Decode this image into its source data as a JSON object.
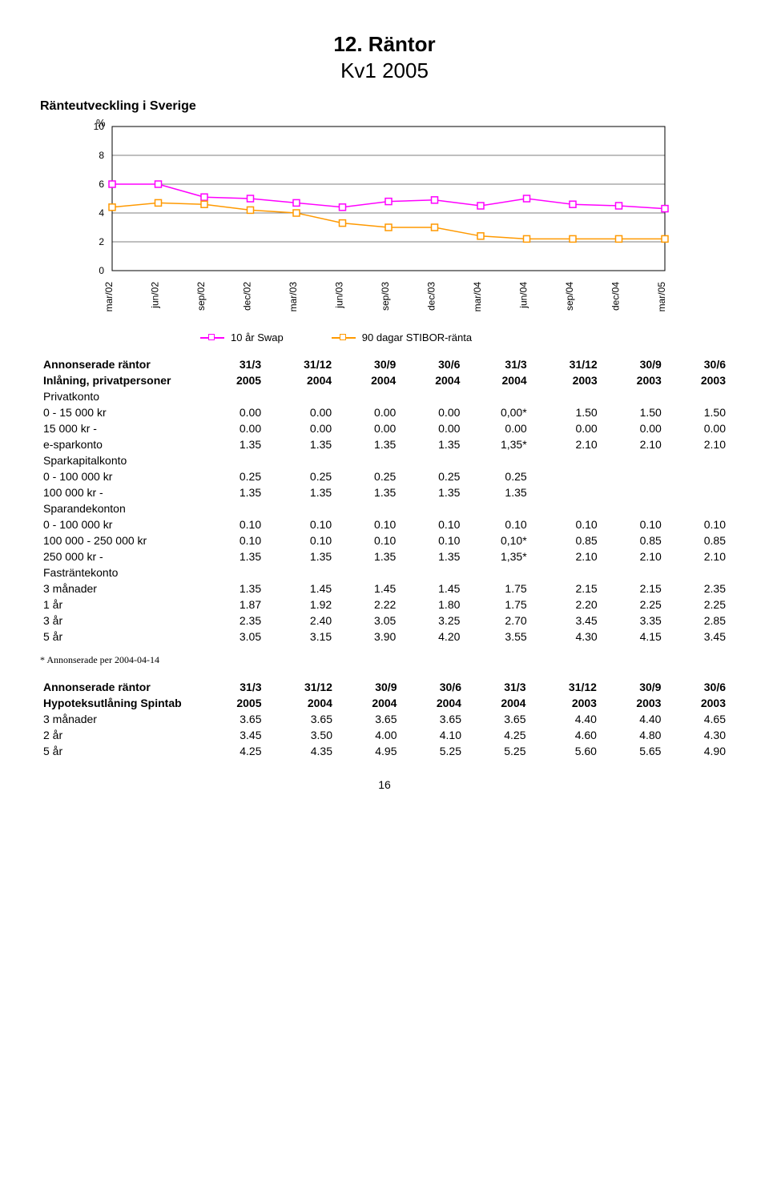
{
  "title": "12. Räntor",
  "subtitle": "Kv1 2005",
  "section_label": "Ränteutveckling i Sverige",
  "chart": {
    "type": "line",
    "y_label": "%",
    "ylim": [
      0,
      10
    ],
    "ytick_step": 2,
    "background_color": "#ffffff",
    "grid_color": "#000000",
    "border_color": "#000000",
    "axis_label_color": "#000000",
    "axis_label_fontsize": 12,
    "x_labels": [
      "mar/02",
      "jun/02",
      "sep/02",
      "dec/02",
      "mar/03",
      "jun/03",
      "sep/03",
      "dec/03",
      "mar/04",
      "jun/04",
      "sep/04",
      "dec/04",
      "mar/05"
    ],
    "series": [
      {
        "name": "10 år Swap",
        "color": "#ff00ff",
        "marker": "square",
        "values": [
          6.0,
          6.0,
          5.1,
          5.0,
          4.7,
          4.4,
          4.8,
          4.9,
          4.5,
          5.0,
          4.6,
          4.5,
          4.3
        ]
      },
      {
        "name": "90 dagar STIBOR-ränta",
        "color": "#ff9900",
        "marker": "square",
        "values": [
          4.4,
          4.7,
          4.6,
          4.2,
          4.0,
          3.3,
          3.0,
          3.0,
          2.4,
          2.2,
          2.2,
          2.2,
          2.2
        ]
      }
    ],
    "legend_position": "bottom"
  },
  "table1": {
    "header1": [
      "Annonserade räntor",
      "31/3",
      "31/12",
      "30/9",
      "30/6",
      "31/3",
      "31/12",
      "30/9",
      "30/6"
    ],
    "header2": [
      "Inlåning, privatpersoner",
      "2005",
      "2004",
      "2004",
      "2004",
      "2004",
      "2003",
      "2003",
      "2003"
    ],
    "groups": [
      {
        "title": "Privatkonto",
        "rows": [
          [
            "0 - 15 000 kr",
            "0.00",
            "0.00",
            "0.00",
            "0.00",
            "0,00*",
            "1.50",
            "1.50",
            "1.50"
          ],
          [
            "15 000 kr -",
            "0.00",
            "0.00",
            "0.00",
            "0.00",
            "0.00",
            "0.00",
            "0.00",
            "0.00"
          ]
        ]
      },
      {
        "title": "e-sparkonto",
        "title_is_row": true,
        "rows": [
          [
            "e-sparkonto",
            "1.35",
            "1.35",
            "1.35",
            "1.35",
            "1,35*",
            "2.10",
            "2.10",
            "2.10"
          ]
        ]
      },
      {
        "title": "Sparkapitalkonto",
        "rows": [
          [
            "0 - 100 000 kr",
            "0.25",
            "0.25",
            "0.25",
            "0.25",
            "0.25",
            "",
            "",
            ""
          ],
          [
            "100 000 kr -",
            "1.35",
            "1.35",
            "1.35",
            "1.35",
            "1.35",
            "",
            "",
            ""
          ]
        ]
      },
      {
        "title": "Sparandekonton",
        "rows": [
          [
            "0 - 100 000 kr",
            "0.10",
            "0.10",
            "0.10",
            "0.10",
            "0.10",
            "0.10",
            "0.10",
            "0.10"
          ],
          [
            "100 000 - 250 000 kr",
            "0.10",
            "0.10",
            "0.10",
            "0.10",
            "0,10*",
            "0.85",
            "0.85",
            "0.85"
          ],
          [
            "250 000 kr -",
            "1.35",
            "1.35",
            "1.35",
            "1.35",
            "1,35*",
            "2.10",
            "2.10",
            "2.10"
          ]
        ]
      },
      {
        "title": "Fasträntekonto",
        "rows": [
          [
            "3 månader",
            "1.35",
            "1.45",
            "1.45",
            "1.45",
            "1.75",
            "2.15",
            "2.15",
            "2.35"
          ],
          [
            "1 år",
            "1.87",
            "1.92",
            "2.22",
            "1.80",
            "1.75",
            "2.20",
            "2.25",
            "2.25"
          ],
          [
            "3 år",
            "2.35",
            "2.40",
            "3.05",
            "3.25",
            "2.70",
            "3.45",
            "3.35",
            "2.85"
          ],
          [
            "5 år",
            "3.05",
            "3.15",
            "3.90",
            "4.20",
            "3.55",
            "4.30",
            "4.15",
            "3.45"
          ]
        ]
      }
    ]
  },
  "footnote": "* Annonserade per 2004-04-14",
  "table2": {
    "header1": [
      "Annonserade räntor",
      "31/3",
      "31/12",
      "30/9",
      "30/6",
      "31/3",
      "31/12",
      "30/9",
      "30/6"
    ],
    "header2": [
      "Hypoteksutlåning Spintab",
      "2005",
      "2004",
      "2004",
      "2004",
      "2004",
      "2003",
      "2003",
      "2003"
    ],
    "rows": [
      [
        "3 månader",
        "3.65",
        "3.65",
        "3.65",
        "3.65",
        "3.65",
        "4.40",
        "4.40",
        "4.65"
      ],
      [
        "2 år",
        "3.45",
        "3.50",
        "4.00",
        "4.10",
        "4.25",
        "4.60",
        "4.80",
        "4.30"
      ],
      [
        "5 år",
        "4.25",
        "4.35",
        "4.95",
        "5.25",
        "5.25",
        "5.60",
        "5.65",
        "4.90"
      ]
    ]
  },
  "page_number": "16"
}
